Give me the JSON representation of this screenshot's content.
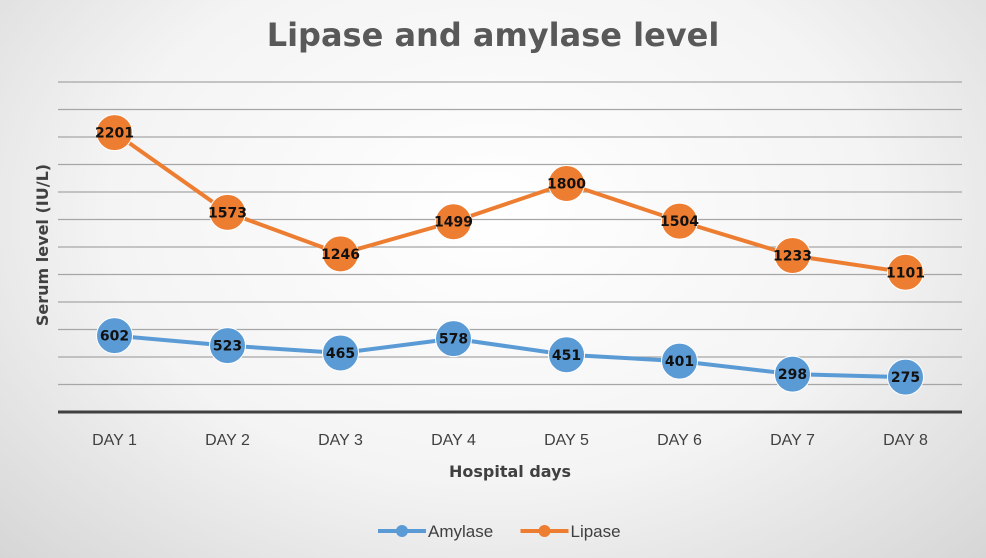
{
  "chart_data": {
    "type": "line",
    "title": "Lipase and amylase level",
    "xlabel": "Hospital days",
    "ylabel": "Serum level (IU/L)",
    "categories": [
      "DAY 1",
      "DAY 2",
      "DAY 3",
      "DAY 4",
      "DAY 5",
      "DAY 6",
      "DAY 7",
      "DAY 8"
    ],
    "series": [
      {
        "name": "Amylase",
        "color": "#5b9bd5",
        "values": [
          602,
          523,
          465,
          578,
          451,
          401,
          298,
          275
        ]
      },
      {
        "name": "Lipase",
        "color": "#ed7d31",
        "values": [
          2201,
          1573,
          1246,
          1499,
          1800,
          1504,
          1233,
          1101
        ]
      }
    ],
    "ylim": [
      0,
      2600
    ],
    "grid": true,
    "legend": "bottom"
  }
}
